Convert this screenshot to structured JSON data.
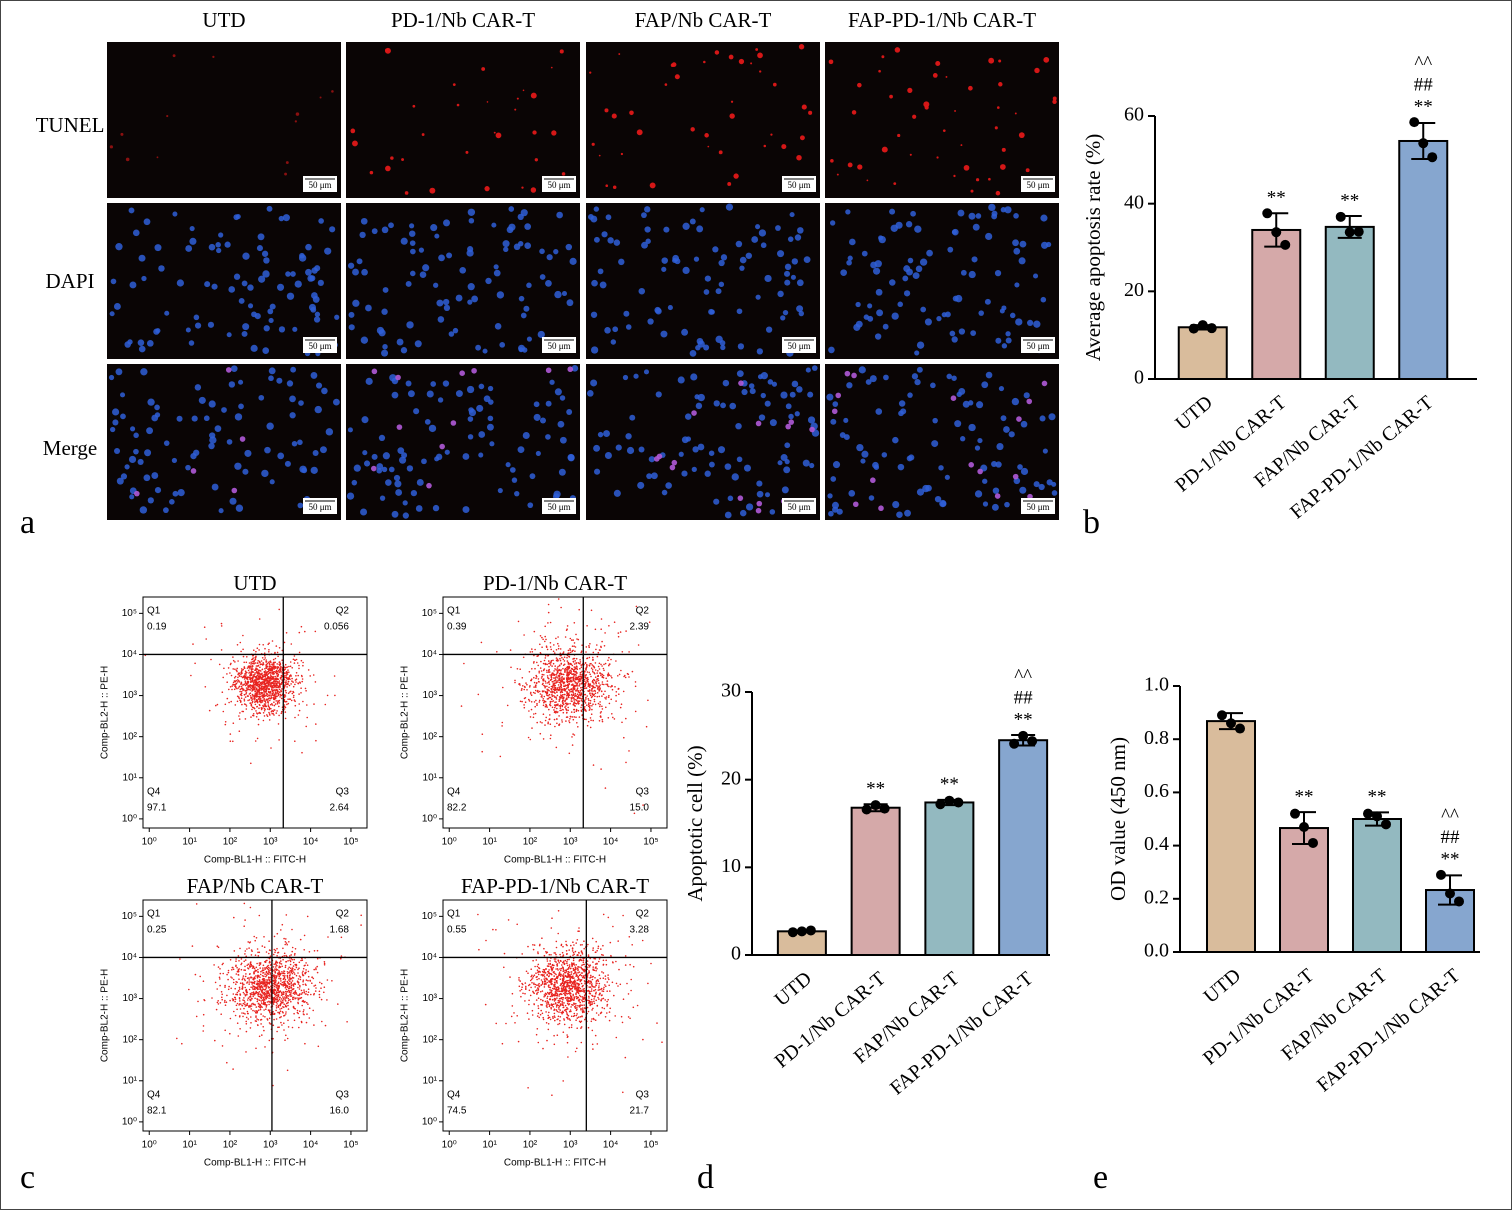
{
  "panel_labels": [
    "a",
    "b",
    "c",
    "d",
    "e"
  ],
  "microscopy": {
    "columns": [
      "UTD",
      "PD-1/Nb CAR-T",
      "FAP/Nb CAR-T",
      "FAP-PD-1/Nb CAR-T"
    ],
    "rows": [
      "TUNEL",
      "DAPI",
      "Merge"
    ],
    "scale_bar": "50 μm"
  },
  "flow_cytometry": {
    "x_label": "Comp-BL1-H :: FITC-H",
    "y_label": "Comp-BL2-H :: PE-H",
    "log_scale": true,
    "xlim": [
      0.7,
      250000
    ],
    "ylim": [
      0.6,
      250000
    ],
    "dot_color": "#e8231f",
    "ticks": [
      {
        "value": 1,
        "label": "10⁰"
      },
      {
        "value": 10,
        "label": "10¹"
      },
      {
        "value": 100,
        "label": "10²"
      },
      {
        "value": 1000,
        "label": "10³"
      },
      {
        "value": 10000,
        "label": "10⁴"
      },
      {
        "value": 100000,
        "label": "10⁵"
      }
    ],
    "plots": [
      {
        "title": "UTD",
        "gate": [
          2100,
          10000
        ],
        "quadrants": [
          {
            "name": "Q1",
            "value": 0.19
          },
          {
            "name": "Q2",
            "value": 0.056
          },
          {
            "name": "Q4",
            "value": 97.1
          },
          {
            "name": "Q3",
            "value": 2.64
          }
        ]
      },
      {
        "title": "PD-1/Nb CAR-T",
        "gate": [
          2100,
          10000
        ],
        "quadrants": [
          {
            "name": "Q1",
            "value": 0.39
          },
          {
            "name": "Q2",
            "value": 2.39
          },
          {
            "name": "Q4",
            "value": 82.2
          },
          {
            "name": "Q3",
            "value": 15,
            "label": "15.0"
          }
        ]
      },
      {
        "title": "FAP/Nb CAR-T",
        "gate": [
          1100,
          10000
        ],
        "quadrants": [
          {
            "name": "Q1",
            "value": 0.25
          },
          {
            "name": "Q2",
            "value": 1.68
          },
          {
            "name": "Q4",
            "value": 82.1
          },
          {
            "name": "Q3",
            "value": 16,
            "label": "16.0"
          }
        ]
      },
      {
        "title": "FAP-PD-1/Nb CAR-T",
        "gate": [
          2500,
          10000
        ],
        "quadrants": [
          {
            "name": "Q1",
            "value": 0.55
          },
          {
            "name": "Q2",
            "value": 3.28
          },
          {
            "name": "Q4",
            "value": 74.5
          },
          {
            "name": "Q3",
            "value": 21.7
          }
        ]
      }
    ]
  },
  "chart_data": [
    {
      "type": "bar",
      "y_label": "Average apoptosis rate (%)",
      "categories": [
        "UTD",
        "PD-1/Nb CAR-T",
        "FAP/Nb CAR-T",
        "FAP-PD-1/Nb CAR-T"
      ],
      "colors": [
        "#d9bc9c",
        "#d5a9a9",
        "#93b9c0",
        "#86a6cf"
      ],
      "values": [
        11.8,
        34.0,
        34.7,
        54.3
      ],
      "errors": [
        0.5,
        3.8,
        2.5,
        4.1
      ],
      "points": [
        [
          11.5,
          12.3,
          11.6
        ],
        [
          37.8,
          33.5,
          30.6
        ],
        [
          37.0,
          33.5,
          33.6
        ],
        [
          58.6,
          53.8,
          50.6
        ]
      ],
      "annotations": [
        null,
        [
          "**"
        ],
        [
          "**"
        ],
        [
          "^^",
          "##",
          "**"
        ]
      ],
      "ylim": [
        0,
        60
      ],
      "yticks": [
        0,
        20,
        40,
        60
      ]
    },
    {
      "type": "bar",
      "y_label": "Apoptotic cell (%)",
      "categories": [
        "UTD",
        "PD-1/Nb CAR-T",
        "FAP/Nb CAR-T",
        "FAP-PD-1/Nb CAR-T"
      ],
      "colors": [
        "#d9bc9c",
        "#d5a9a9",
        "#93b9c0",
        "#86a6cf"
      ],
      "values": [
        2.7,
        16.8,
        17.4,
        24.5
      ],
      "errors": [
        0.1,
        0.4,
        0.3,
        0.6
      ],
      "points": [
        [
          2.6,
          2.7,
          2.8
        ],
        [
          16.6,
          17.1,
          16.7
        ],
        [
          17.2,
          17.6,
          17.4
        ],
        [
          24.1,
          25.0,
          24.4
        ]
      ],
      "annotations": [
        null,
        [
          "**"
        ],
        [
          "**"
        ],
        [
          "^^",
          "##",
          "**"
        ]
      ],
      "ylim": [
        0,
        30
      ],
      "yticks": [
        0,
        10,
        20,
        30
      ]
    },
    {
      "type": "bar",
      "y_label": "OD value (450 nm)",
      "categories": [
        "UTD",
        "PD-1/Nb CAR-T",
        "FAP/Nb CAR-T",
        "FAP-PD-1/Nb CAR-T"
      ],
      "colors": [
        "#d9bc9c",
        "#d5a9a9",
        "#93b9c0",
        "#86a6cf"
      ],
      "values": [
        0.868,
        0.466,
        0.5,
        0.233
      ],
      "errors": [
        0.03,
        0.06,
        0.025,
        0.055
      ],
      "points": [
        [
          0.89,
          0.86,
          0.84
        ],
        [
          0.52,
          0.47,
          0.41
        ],
        [
          0.52,
          0.51,
          0.48
        ],
        [
          0.29,
          0.22,
          0.19
        ]
      ],
      "annotations": [
        null,
        [
          "**"
        ],
        [
          "**"
        ],
        [
          "^^",
          "##",
          "**"
        ]
      ],
      "ylim": [
        0,
        1
      ],
      "yticks": [
        {
          "value": 0,
          "label": "0.0"
        },
        0.2,
        0.4,
        0.6,
        0.8,
        {
          "value": 1,
          "label": "1.0"
        }
      ]
    }
  ]
}
